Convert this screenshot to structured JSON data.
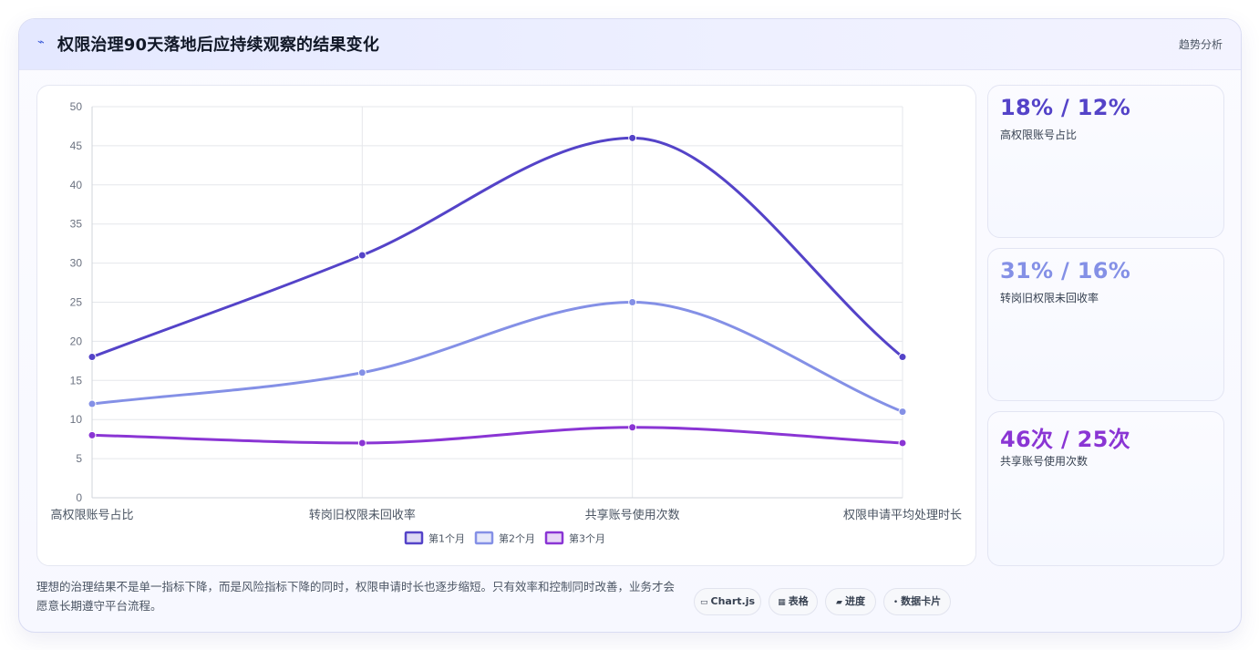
{
  "header": {
    "icon": "trend-line-icon",
    "title": "权限治理90天落地后应持续观察的结果变化",
    "tag": "趋势分析"
  },
  "chart_data": {
    "type": "line",
    "categories": [
      "高权限账号占比",
      "转岗旧权限未回收率",
      "共享账号使用次数",
      "权限申请平均处理时长"
    ],
    "series": [
      {
        "name": "第1个月",
        "values": [
          18,
          31,
          46,
          18
        ],
        "color": "#5443c8"
      },
      {
        "name": "第2个月",
        "values": [
          12,
          16,
          25,
          11
        ],
        "color": "#8490e6"
      },
      {
        "name": "第3个月",
        "values": [
          8,
          7,
          9,
          7
        ],
        "color": "#8a35d4"
      }
    ],
    "ylim": [
      0,
      50
    ],
    "yticks": [
      0,
      5,
      10,
      15,
      20,
      25,
      30,
      35,
      40,
      45,
      50
    ],
    "grid": true,
    "legend": "bottom"
  },
  "stats": [
    {
      "value": "18% / 12%",
      "label": "高权限账号占比",
      "color": "#5443c8"
    },
    {
      "value": "31% / 16%",
      "label": "转岗旧权限未回收率",
      "color": "#8490e6"
    },
    {
      "value": "46次 / 25次",
      "label": "共享账号使用次数",
      "color": "#8a35d4"
    }
  ],
  "footer": {
    "text": "理想的治理结果不是单一指标下降，而是风险指标下降的同时，权限申请时长也逐步缩短。只有效率和控制同时改善，业务才会愿意长期遵守平台流程。",
    "chips": [
      {
        "icon": "▭",
        "label": "Chart.js"
      },
      {
        "icon": "▦",
        "label": "表格"
      },
      {
        "icon": "▰",
        "label": "进度"
      },
      {
        "icon": "•",
        "label": "数据卡片"
      }
    ]
  }
}
